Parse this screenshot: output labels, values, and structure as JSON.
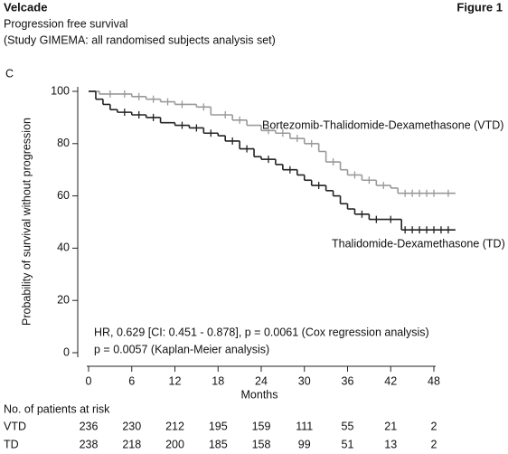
{
  "header": {
    "title": "Velcade",
    "figure": "Figure 1",
    "subtitle": "Progression free survival",
    "study": "(Study GIMEMA: all randomised subjects analysis set)",
    "panel": "C"
  },
  "chart_data": {
    "type": "step",
    "xlabel": "Months",
    "ylabel": "Probability of survival without progression",
    "xlim": [
      0,
      48
    ],
    "xticks": [
      0,
      6,
      12,
      18,
      24,
      30,
      36,
      42,
      48
    ],
    "ylim": [
      0,
      100
    ],
    "yticks": [
      0,
      20,
      40,
      60,
      80,
      100
    ],
    "series": [
      {
        "name": "Bortezomib-Thalidomide-Dexamethasone (VTD)",
        "color": "#999999",
        "x": [
          0,
          1.5,
          6,
          8,
          10,
          12,
          15,
          17,
          20,
          22,
          24,
          26,
          28,
          30,
          32,
          33,
          35,
          36,
          38,
          40,
          42,
          43,
          51
        ],
        "values": [
          100,
          99,
          98,
          97,
          96,
          95,
          94,
          91,
          89,
          87,
          85,
          84,
          82,
          80,
          77,
          73,
          70,
          68,
          66,
          64,
          63,
          61,
          61
        ],
        "censored": [
          3,
          5,
          7,
          9,
          11,
          13,
          16,
          19,
          21,
          25,
          27,
          29,
          31,
          34,
          37,
          39,
          41,
          44,
          45,
          46,
          47,
          48,
          50
        ]
      },
      {
        "name": "Thalidomide-Dexamethasone (TD)",
        "color": "#222222",
        "x": [
          0,
          1,
          2,
          3,
          4,
          6,
          8,
          10,
          12,
          14,
          16,
          18,
          19,
          21,
          23,
          24,
          26,
          27,
          29,
          30,
          31,
          33,
          34,
          35,
          36,
          37,
          39,
          43.5,
          51
        ],
        "values": [
          100,
          97,
          95,
          93,
          92,
          91,
          90,
          88,
          87,
          86,
          84,
          83,
          81,
          78,
          75,
          74,
          72,
          70,
          68,
          66,
          64,
          62,
          60,
          57,
          55,
          53,
          51,
          47,
          47
        ],
        "censored": [
          5,
          7,
          9,
          13,
          15,
          17,
          20,
          22,
          25,
          28,
          32,
          38,
          40,
          42,
          44,
          45,
          46,
          47,
          48,
          49,
          50
        ]
      }
    ],
    "annotations": [
      "HR, 0.629 [CI: 0.451 - 0.878], p = 0.0061 (Cox regression analysis)",
      "p = 0.0057 (Kaplan-Meier analysis)"
    ]
  },
  "at_risk": {
    "title": "No. of patients at risk",
    "rows": [
      {
        "name": "VTD",
        "values": [
          "236",
          "230",
          "212",
          "195",
          "159",
          "111",
          "55",
          "21",
          "2"
        ]
      },
      {
        "name": "TD",
        "values": [
          "238",
          "218",
          "200",
          "185",
          "158",
          "99",
          "51",
          "13",
          "2"
        ]
      }
    ]
  }
}
